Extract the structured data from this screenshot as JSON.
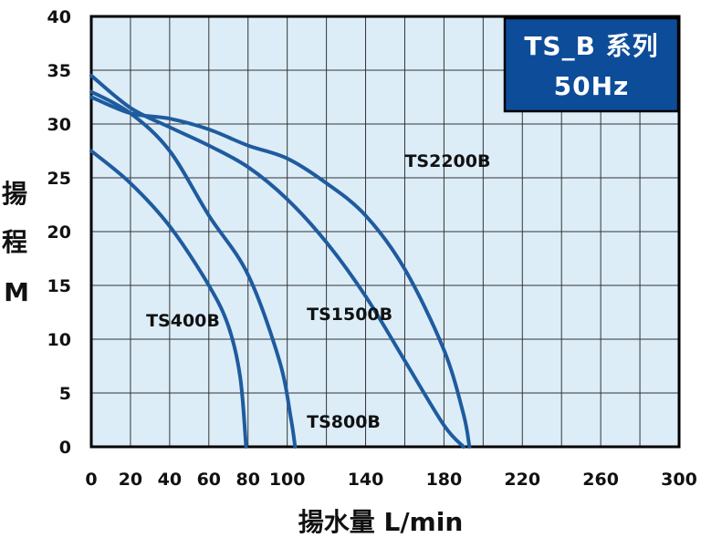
{
  "chart_data": {
    "type": "line",
    "title": "TS_B 系列",
    "subtitle": "50Hz",
    "xlabel": "揚水量 L/min",
    "ylabel_chars": [
      "揚",
      "程"
    ],
    "ylabel_unit": "M",
    "xlim": [
      0,
      300
    ],
    "ylim": [
      0,
      40
    ],
    "xticks": [
      0,
      20,
      40,
      60,
      80,
      100,
      140,
      180,
      220,
      260,
      300
    ],
    "xtick_values": [
      0,
      20,
      40,
      60,
      80,
      100,
      120,
      140,
      160,
      180,
      200,
      220,
      240,
      260,
      280,
      300
    ],
    "yticks": [
      0,
      5,
      10,
      15,
      20,
      25,
      30,
      35,
      40
    ],
    "grid": true,
    "colors": {
      "line": "#1f5b9e",
      "plot_bg": "#dcedf8",
      "grid": "#333333",
      "badge_bg": "#0d4c99",
      "axis": "#000000"
    },
    "series": [
      {
        "name": "TS400B",
        "label_at": [
          28,
          11.2
        ],
        "points": [
          [
            0,
            27.5
          ],
          [
            20,
            24.5
          ],
          [
            40,
            20.5
          ],
          [
            60,
            15
          ],
          [
            70,
            11.2
          ],
          [
            76,
            6.5
          ],
          [
            79,
            0
          ]
        ]
      },
      {
        "name": "TS800B",
        "label_at": [
          110,
          1.8
        ],
        "points": [
          [
            0,
            33
          ],
          [
            20,
            31
          ],
          [
            40,
            27.5
          ],
          [
            60,
            21.5
          ],
          [
            80,
            16
          ],
          [
            96,
            8
          ],
          [
            102,
            2.5
          ],
          [
            104,
            0
          ]
        ]
      },
      {
        "name": "TS1500B",
        "label_at": [
          110,
          11.8
        ],
        "points": [
          [
            0,
            34.5
          ],
          [
            20,
            31.5
          ],
          [
            40,
            29.7
          ],
          [
            60,
            28
          ],
          [
            80,
            26
          ],
          [
            100,
            23
          ],
          [
            120,
            19
          ],
          [
            140,
            14
          ],
          [
            160,
            8
          ],
          [
            180,
            2
          ],
          [
            190,
            0
          ]
        ]
      },
      {
        "name": "TS2200B",
        "label_at": [
          160,
          26
        ],
        "points": [
          [
            0,
            32.5
          ],
          [
            20,
            31
          ],
          [
            40,
            30.5
          ],
          [
            60,
            29.5
          ],
          [
            80,
            28
          ],
          [
            100,
            26.8
          ],
          [
            120,
            24.5
          ],
          [
            140,
            21.5
          ],
          [
            160,
            16.5
          ],
          [
            180,
            9
          ],
          [
            190,
            3
          ],
          [
            193,
            0
          ]
        ]
      }
    ]
  }
}
